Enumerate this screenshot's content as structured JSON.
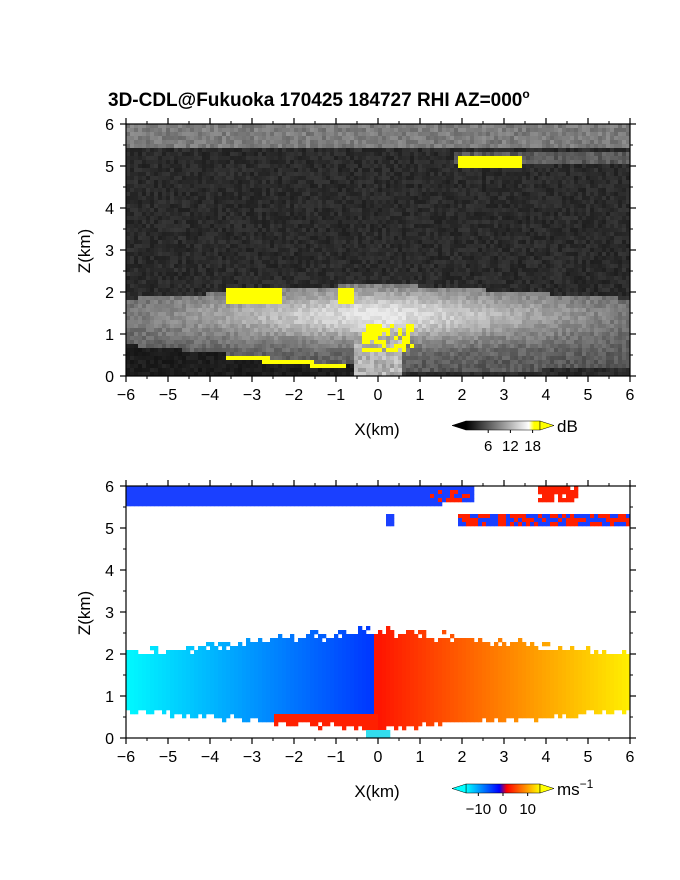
{
  "title": "3D-CDL@Fukuoka 170425 184727 RHI AZ=000",
  "title_suffix": "o",
  "chart_data": [
    {
      "type": "heatmap",
      "name": "backscatter",
      "xlabel": "X(km)",
      "ylabel": "Z(km)",
      "xlim": [
        -6,
        6
      ],
      "ylim": [
        0,
        6
      ],
      "xticks": [
        "-6",
        "-5",
        "-4",
        "-3",
        "-2",
        "-1",
        "0",
        "1",
        "2",
        "3",
        "4",
        "5",
        "6"
      ],
      "yticks": [
        "0",
        "1",
        "2",
        "3",
        "4",
        "5",
        "6"
      ],
      "colorbar": {
        "unit": "dB",
        "ticks": [
          "6",
          "12",
          "18"
        ],
        "tick_values": [
          6,
          12,
          18
        ],
        "range": [
          0,
          20
        ]
      },
      "colormap": [
        "#000000",
        "#ffffff",
        "#ffff00"
      ]
    },
    {
      "type": "heatmap",
      "name": "doppler-velocity",
      "xlabel": "X(km)",
      "ylabel": "Z(km)",
      "xlim": [
        -6,
        6
      ],
      "ylim": [
        0,
        6
      ],
      "xticks": [
        "-6",
        "-5",
        "-4",
        "-3",
        "-2",
        "-1",
        "0",
        "1",
        "2",
        "3",
        "4",
        "5",
        "6"
      ],
      "yticks": [
        "0",
        "1",
        "2",
        "3",
        "4",
        "5",
        "6"
      ],
      "colorbar": {
        "unit": "ms",
        "unit_exp": "−1",
        "ticks": [
          "−10",
          "0",
          "10"
        ],
        "tick_values": [
          -10,
          0,
          10
        ],
        "range": [
          -15,
          15
        ]
      },
      "colormap": [
        "#00ffff",
        "#0000ff",
        "#ff0000",
        "#ffff00"
      ]
    }
  ]
}
